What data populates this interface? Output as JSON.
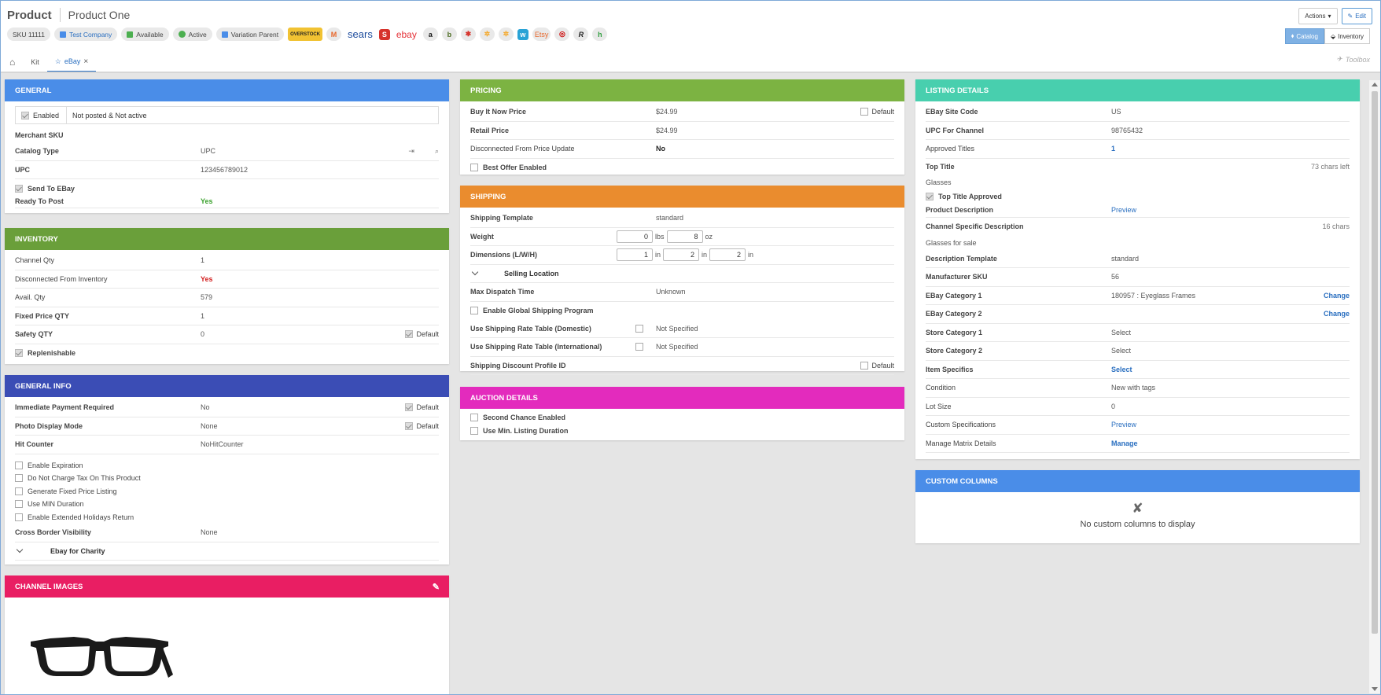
{
  "header": {
    "product_label": "Product",
    "product_name": "Product One",
    "actions_label": "Actions",
    "edit_label": "Edit",
    "catalog_label": "Catalog",
    "inventory_label": "Inventory"
  },
  "badges": {
    "sku": "SKU 11111",
    "company": "Test Company",
    "available": "Available",
    "active": "Active",
    "variation": "Variation Parent"
  },
  "channels": [
    "OVERSTOCK",
    "M",
    "sears",
    "S",
    "ebay",
    "a",
    "b",
    "✱",
    "✲",
    "✲",
    "w",
    "Etsy",
    "◎",
    "R",
    "h"
  ],
  "tabs": {
    "kit": "Kit",
    "ebay": "eBay",
    "toolbox": "Toolbox"
  },
  "general": {
    "title": "GENERAL",
    "enabled_label": "Enabled",
    "status": "Not posted & Not active",
    "merchant_sku": "Merchant SKU",
    "catalog_type_label": "Catalog Type",
    "catalog_type_value": "UPC",
    "upc_label": "UPC",
    "upc_value": "123456789012",
    "send_to_ebay": "Send To EBay",
    "ready_label": "Ready To Post",
    "ready_value": "Yes"
  },
  "inventory": {
    "title": "INVENTORY",
    "channel_qty_label": "Channel Qty",
    "channel_qty_value": "1",
    "disconnected_label": "Disconnected From Inventory",
    "disconnected_value": "Yes",
    "avail_label": "Avail. Qty",
    "avail_value": "579",
    "fixed_label": "Fixed Price QTY",
    "fixed_value": "1",
    "safety_label": "Safety QTY",
    "safety_value": "0",
    "default_label": "Default",
    "replenishable": "Replenishable"
  },
  "general_info": {
    "title": "GENERAL INFO",
    "immediate_label": "Immediate Payment Required",
    "immediate_value": "No",
    "photo_label": "Photo Display Mode",
    "photo_value": "None",
    "hit_label": "Hit Counter",
    "hit_value": "NoHitCounter",
    "default_label": "Default",
    "checks": [
      "Enable Expiration",
      "Do Not Charge Tax On This Product",
      "Generate Fixed Price Listing",
      "Use MIN Duration",
      "Enable Extended Holidays Return"
    ],
    "cross_label": "Cross Border Visibility",
    "cross_value": "None",
    "charity_label": "Ebay for Charity"
  },
  "channel_images": {
    "title": "CHANNEL IMAGES"
  },
  "pricing": {
    "title": "PRICING",
    "bin_label": "Buy It Now Price",
    "bin_value": "$24.99",
    "default_label": "Default",
    "retail_label": "Retail Price",
    "retail_value": "$24.99",
    "disc_label": "Disconnected From Price Update",
    "disc_value": "No",
    "best_offer": "Best Offer Enabled"
  },
  "shipping": {
    "title": "SHIPPING",
    "template_label": "Shipping Template",
    "template_value": "standard",
    "weight_label": "Weight",
    "weight_lbs": "0",
    "lbs": "lbs",
    "weight_oz": "8",
    "oz": "oz",
    "dims_label": "Dimensions (L/W/H)",
    "dim_l": "1",
    "dim_w": "2",
    "dim_h": "2",
    "in": "in",
    "selling_location": "Selling Location",
    "dispatch_label": "Max Dispatch Time",
    "dispatch_value": "Unknown",
    "global": "Enable Global Shipping Program",
    "rate_dom_label": "Use Shipping Rate Table (Domestic)",
    "rate_dom_value": "Not Specified",
    "rate_int_label": "Use Shipping Rate Table (International)",
    "rate_int_value": "Not Specified",
    "discount_label": "Shipping Discount Profile ID",
    "default_label": "Default"
  },
  "auction": {
    "title": "AUCTION DETAILS",
    "second_chance": "Second Chance Enabled",
    "min_duration": "Use Min. Listing Duration"
  },
  "listing": {
    "title": "LISTING DETAILS",
    "site_label": "EBay Site Code",
    "site_value": "US",
    "upc_label": "UPC For Channel",
    "upc_value": "98765432",
    "approved_label": "Approved Titles",
    "approved_value": "1",
    "top_title_label": "Top Title",
    "top_title_meta": "73 chars left",
    "top_title_value": "Glasses",
    "top_title_approved": "Top Title Approved",
    "desc_label": "Product Description",
    "desc_value": "Preview",
    "csd_label": "Channel Specific Description",
    "csd_meta": "16 chars",
    "csd_value": "Glasses for sale",
    "tmpl_label": "Description Template",
    "tmpl_value": "standard",
    "msku_label": "Manufacturer SKU",
    "msku_value": "56",
    "cat1_label": "EBay Category 1",
    "cat1_value": "180957 : Eyeglass Frames",
    "change": "Change",
    "cat2_label": "EBay Category 2",
    "store1_label": "Store Category 1",
    "store1_value": "Select",
    "store2_label": "Store Category 2",
    "store2_value": "Select",
    "item_spec_label": "Item Specifics",
    "item_spec_value": "Select",
    "condition_label": "Condition",
    "condition_value": "New with tags",
    "lot_label": "Lot Size",
    "lot_value": "0",
    "custom_spec_label": "Custom Specifications",
    "custom_spec_value": "Preview",
    "matrix_label": "Manage Matrix Details",
    "matrix_value": "Manage"
  },
  "custom_columns": {
    "title": "CUSTOM COLUMNS",
    "empty": "No custom columns to display"
  },
  "colors": {
    "general": "#4a8de8",
    "inventory": "#6a9f3a",
    "general_info": "#3b4db5",
    "channel_images": "#e91e63",
    "pricing": "#7cb342",
    "shipping": "#ea8c2e",
    "auction": "#e32bbd",
    "listing": "#48cfae",
    "custom_columns": "#4a8de8"
  }
}
